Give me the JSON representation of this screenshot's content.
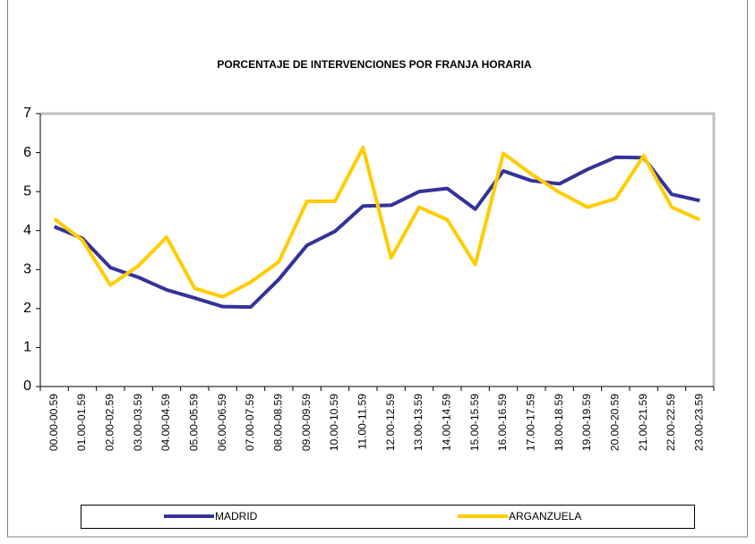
{
  "chart_data": {
    "type": "line",
    "title": "PORCENTAJE DE INTERVENCIONES POR FRANJA HORARIA",
    "categories": [
      "00.00-00.59",
      "01.00-01.59",
      "02.00-02.59",
      "03.00-03.59",
      "04.00-04.59",
      "05.00-05.59",
      "06.00-06.59",
      "07.00-07.59",
      "08.00-08.59",
      "09.00-09.59",
      "10.00-10.59",
      "11.00-11.59",
      "12.00-12.59",
      "13.00-13.59",
      "14.00-14.59",
      "15.00-15.59",
      "16.00-16.59",
      "17.00-17.59",
      "18.00-18.59",
      "19.00-19.59",
      "20.00-20.59",
      "21.00-21.59",
      "22.00-22.59",
      "23.00-23.59"
    ],
    "series": [
      {
        "name": "MADRID",
        "color": "#333399",
        "values": [
          4.1,
          3.8,
          3.05,
          2.8,
          2.48,
          2.27,
          2.05,
          2.04,
          2.75,
          3.62,
          3.98,
          4.63,
          4.65,
          5.0,
          5.08,
          4.55,
          5.53,
          5.28,
          5.2,
          5.57,
          5.88,
          5.87,
          4.93,
          4.77
        ]
      },
      {
        "name": "ARGANZUELA",
        "color": "#ffcc00",
        "values": [
          4.3,
          3.75,
          2.6,
          3.1,
          3.83,
          2.52,
          2.3,
          2.68,
          3.2,
          4.75,
          4.75,
          6.13,
          3.3,
          4.6,
          4.28,
          3.13,
          5.98,
          5.45,
          4.98,
          4.6,
          4.82,
          5.92,
          4.6,
          4.28
        ]
      }
    ],
    "ylim": [
      0,
      7
    ],
    "yticks": [
      0,
      1,
      2,
      3,
      4,
      5,
      6,
      7
    ],
    "legend": "bottom"
  }
}
